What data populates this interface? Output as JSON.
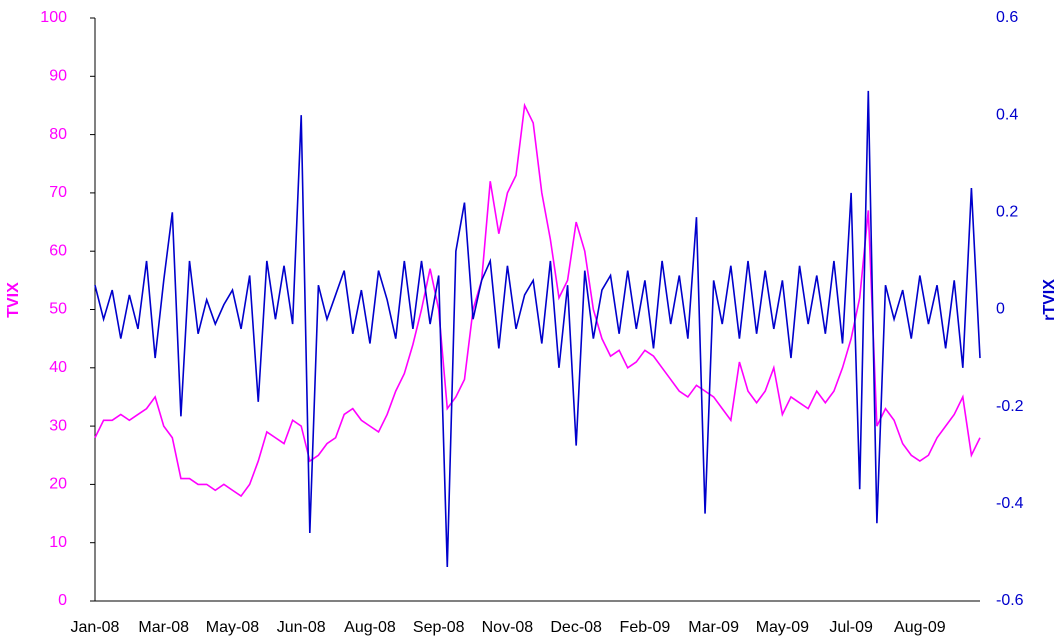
{
  "chart_data": {
    "type": "line",
    "y_label": "TVIX",
    "y2_label": "rTVIX",
    "categories": [
      "Jan-08",
      null,
      null,
      null,
      null,
      null,
      null,
      null,
      "Mar-08",
      null,
      null,
      null,
      null,
      null,
      null,
      null,
      "May-08",
      null,
      null,
      null,
      null,
      null,
      null,
      null,
      "Jun-08",
      null,
      null,
      null,
      null,
      null,
      null,
      null,
      "Aug-08",
      null,
      null,
      null,
      null,
      null,
      null,
      null,
      "Sep-08",
      null,
      null,
      null,
      null,
      null,
      null,
      null,
      "Nov-08",
      null,
      null,
      null,
      null,
      null,
      null,
      null,
      "Dec-08",
      null,
      null,
      null,
      null,
      null,
      null,
      null,
      "Feb-09",
      null,
      null,
      null,
      null,
      null,
      null,
      null,
      "Mar-09",
      null,
      null,
      null,
      null,
      null,
      null,
      null,
      "May-09",
      null,
      null,
      null,
      null,
      null,
      null,
      null,
      "Jul-09",
      null,
      null,
      null,
      null,
      null,
      null,
      null,
      "Aug-09",
      null,
      null,
      null,
      null,
      null,
      null,
      null
    ],
    "series": [
      {
        "name": "TVIX",
        "color": "#ff00ff",
        "values": [
          28,
          31,
          31,
          32,
          31,
          32,
          33,
          35,
          30,
          28,
          21,
          21,
          20,
          20,
          19,
          20,
          19,
          18,
          20,
          24,
          29,
          28,
          27,
          31,
          30,
          24,
          25,
          27,
          28,
          32,
          33,
          31,
          30,
          29,
          32,
          36,
          39,
          44,
          50,
          57,
          50,
          33,
          35,
          38,
          50,
          55,
          72,
          63,
          70,
          73,
          85,
          82,
          70,
          62,
          52,
          55,
          65,
          60,
          50,
          45,
          42,
          43,
          40,
          41,
          43,
          42,
          40,
          38,
          36,
          35,
          37,
          36,
          35,
          33,
          31,
          41,
          36,
          34,
          36,
          40,
          32,
          35,
          34,
          33,
          36,
          34,
          36,
          40,
          45,
          52,
          67,
          30,
          33,
          31,
          27,
          25,
          24,
          25,
          28,
          30,
          32,
          35,
          25,
          28
        ]
      },
      {
        "name": "rTVIX",
        "color": "#0000cc",
        "axis": "y2",
        "values": [
          0.05,
          -0.02,
          0.04,
          -0.06,
          0.03,
          -0.04,
          0.1,
          -0.1,
          0.06,
          0.2,
          -0.22,
          0.1,
          -0.05,
          0.02,
          -0.03,
          0.01,
          0.04,
          -0.04,
          0.07,
          -0.19,
          0.1,
          -0.02,
          0.09,
          -0.03,
          0.4,
          -0.46,
          0.05,
          -0.02,
          0.03,
          0.08,
          -0.05,
          0.04,
          -0.07,
          0.08,
          0.02,
          -0.06,
          0.1,
          -0.04,
          0.1,
          -0.03,
          0.07,
          -0.53,
          0.12,
          0.22,
          -0.02,
          0.06,
          0.1,
          -0.08,
          0.09,
          -0.04,
          0.03,
          0.06,
          -0.07,
          0.1,
          -0.12,
          0.05,
          -0.28,
          0.08,
          -0.06,
          0.04,
          0.07,
          -0.05,
          0.08,
          -0.04,
          0.06,
          -0.08,
          0.1,
          -0.03,
          0.07,
          -0.06,
          0.19,
          -0.42,
          0.06,
          -0.03,
          0.09,
          -0.06,
          0.1,
          -0.05,
          0.08,
          -0.04,
          0.06,
          -0.1,
          0.09,
          -0.03,
          0.07,
          -0.05,
          0.1,
          -0.07,
          0.24,
          -0.37,
          0.45,
          -0.44,
          0.05,
          -0.02,
          0.04,
          -0.06,
          0.07,
          -0.03,
          0.05,
          -0.08,
          0.06,
          -0.12,
          0.25,
          -0.1
        ]
      }
    ],
    "ylim": [
      0,
      100
    ],
    "yticks": [
      0,
      10,
      20,
      30,
      40,
      50,
      60,
      70,
      80,
      90,
      100
    ],
    "y2lim": [
      -0.6,
      0.6
    ],
    "y2ticks": [
      -0.6,
      -0.4,
      -0.2,
      0,
      0.2,
      0.4,
      0.6
    ],
    "grid": false
  }
}
